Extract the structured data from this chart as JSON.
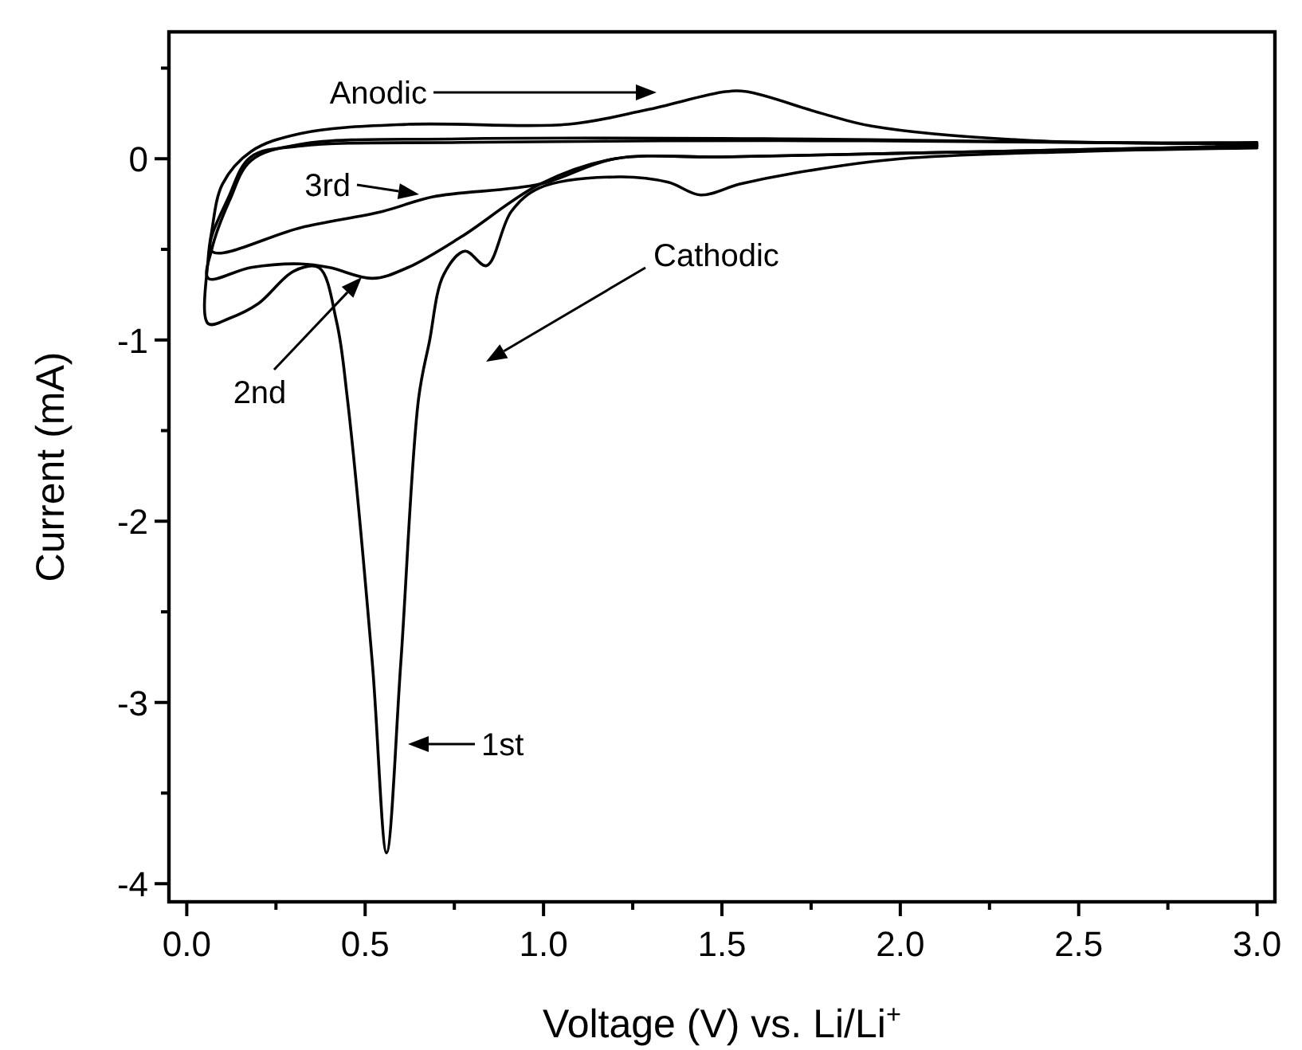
{
  "chart_data": {
    "type": "line",
    "xlabel": "Voltage (V) vs. Li/Li$^{+}$",
    "ylabel": "Current (mA)",
    "xlim": [
      -0.05,
      3.05
    ],
    "ylim": [
      -4.1,
      0.7
    ],
    "xticks": [
      {
        "value": 0,
        "label": "0.0"
      },
      {
        "value": 0.25,
        "label": null
      },
      {
        "value": 0.5,
        "label": "0.5"
      },
      {
        "value": 0.75,
        "label": null
      },
      {
        "value": 1,
        "label": "1.0"
      },
      {
        "value": 1.25,
        "label": null
      },
      {
        "value": 1.5,
        "label": "1.5"
      },
      {
        "value": 1.75,
        "label": null
      },
      {
        "value": 2,
        "label": "2.0"
      },
      {
        "value": 2.25,
        "label": null
      },
      {
        "value": 2.5,
        "label": "2.5"
      },
      {
        "value": 2.75,
        "label": null
      },
      {
        "value": 3,
        "label": "3.0"
      }
    ],
    "yticks": [
      -4,
      {
        "value": -3.5,
        "label": null
      },
      -3,
      {
        "value": -2.5,
        "label": null
      },
      -2,
      {
        "value": -1.5,
        "label": null
      },
      -1,
      {
        "value": -0.5,
        "label": null
      },
      0,
      {
        "value": 0.5,
        "label": null
      }
    ],
    "grid": false,
    "series": [
      {
        "color": "#000000",
        "x": [
          3.0,
          2.5,
          2.0,
          1.7,
          1.55,
          1.44,
          1.35,
          1.21,
          0.99,
          0.91,
          0.84,
          0.78,
          0.72,
          0.68,
          0.65,
          0.6,
          0.56,
          0.52,
          0.45,
          0.42,
          0.37,
          0.3,
          0.2,
          0.12,
          0.06,
          0.06,
          0.07,
          0.1,
          0.18,
          0.32,
          0.62,
          1.07,
          1.29,
          1.51,
          1.57,
          1.78,
          1.92,
          2.37,
          3.0
        ],
        "values": [
          0.06,
          0.04,
          0.0,
          -0.08,
          -0.14,
          -0.2,
          -0.13,
          -0.1,
          -0.16,
          -0.29,
          -0.59,
          -0.51,
          -0.64,
          -1.01,
          -1.32,
          -2.78,
          -3.83,
          -2.78,
          -1.32,
          -0.9,
          -0.6,
          -0.62,
          -0.8,
          -0.88,
          -0.91,
          -0.55,
          -0.4,
          -0.14,
          0.04,
          0.14,
          0.19,
          0.19,
          0.27,
          0.37,
          0.37,
          0.25,
          0.18,
          0.1,
          0.09
        ]
      },
      {
        "color": "#000000",
        "x": [
          3.0,
          2.5,
          2.0,
          1.5,
          1.2,
          0.99,
          0.77,
          0.62,
          0.52,
          0.4,
          0.32,
          0.18,
          0.06,
          0.07,
          0.12,
          0.18,
          0.32,
          0.77,
          1.66,
          2.5,
          3.0
        ],
        "values": [
          0.07,
          0.05,
          0.03,
          0.01,
          0.0,
          -0.14,
          -0.43,
          -0.6,
          -0.66,
          -0.6,
          -0.58,
          -0.6,
          -0.66,
          -0.5,
          -0.23,
          -0.01,
          0.08,
          0.11,
          0.11,
          0.09,
          0.08
        ]
      },
      {
        "color": "#000000",
        "x": [
          3.0,
          2.5,
          2.0,
          1.5,
          1.2,
          0.99,
          0.69,
          0.55,
          0.32,
          0.07,
          0.12,
          0.18,
          0.32,
          0.77,
          1.66,
          2.5,
          3.0
        ],
        "values": [
          0.07,
          0.05,
          0.03,
          0.01,
          0.0,
          -0.14,
          -0.21,
          -0.29,
          -0.38,
          -0.51,
          -0.2,
          0.01,
          0.07,
          0.09,
          0.1,
          0.09,
          0.08
        ]
      }
    ],
    "annotations": [
      "Anodic",
      "3rd",
      "Cathodic",
      "2nd",
      "1st"
    ]
  }
}
